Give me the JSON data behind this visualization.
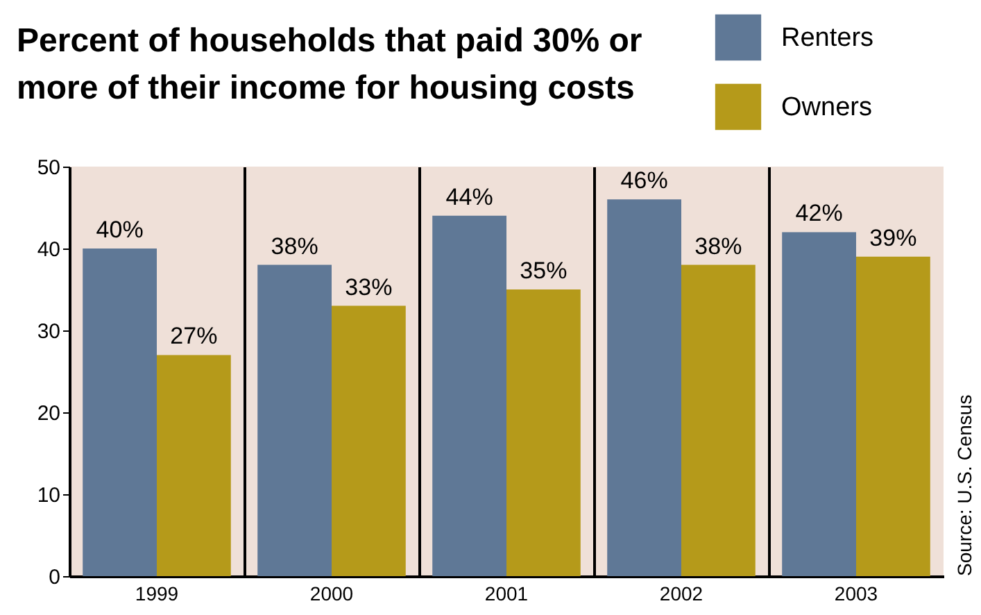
{
  "chart_data": {
    "type": "bar",
    "title": [
      "Percent of households that paid 30% or",
      "more of their income for housing costs"
    ],
    "categories": [
      "1999",
      "2000",
      "2001",
      "2002",
      "2003"
    ],
    "series": [
      {
        "name": "Renters",
        "color": "#5f7896",
        "values": [
          40,
          38,
          44,
          46,
          42
        ],
        "value_labels": [
          "40%",
          "38%",
          "44%",
          "46%",
          "42%"
        ]
      },
      {
        "name": "Owners",
        "color": "#b59a1a",
        "values": [
          27,
          33,
          35,
          38,
          39
        ],
        "value_labels": [
          "27%",
          "33%",
          "35%",
          "38%",
          "39%"
        ]
      }
    ],
    "ylim": [
      0,
      50
    ],
    "yticks": [
      0,
      10,
      20,
      30,
      40,
      50
    ],
    "grid": "x",
    "legend": "top right",
    "annotations": [
      "Source: U.S. Census"
    ]
  }
}
